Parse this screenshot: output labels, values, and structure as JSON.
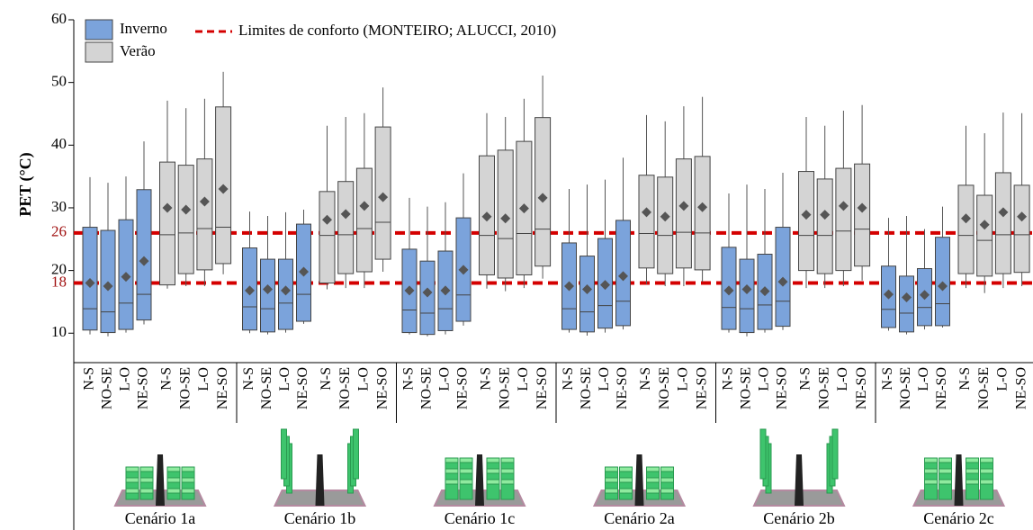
{
  "chart_data": {
    "type": "box",
    "ylabel": "PET (°C)",
    "ylim": [
      5.3,
      60
    ],
    "yticks": [
      10,
      20,
      30,
      40,
      50,
      60
    ],
    "series": [
      {
        "name": "Inverno",
        "color": "#7ba3db"
      },
      {
        "name": "Verão",
        "color": "#d4d4d4"
      }
    ],
    "reference": {
      "name": "Limites de conforto (MONTEIRO; ALUCCI, 2010)",
      "color": "#d40000",
      "values": [
        26,
        18
      ]
    },
    "orientations": [
      "N-S",
      "NO-SE",
      "L-O",
      "NE-SO"
    ],
    "groups": [
      {
        "label": "Cenário 1a",
        "series": [
          {
            "boxes": [
              {
                "lo": 9.8,
                "q1": 10.5,
                "med": 13.9,
                "q3": 26.9,
                "hi": 34.9,
                "mean": 18
              },
              {
                "lo": 9.5,
                "q1": 10.1,
                "med": 13.4,
                "q3": 26.4,
                "hi": 34,
                "mean": 17.5
              },
              {
                "lo": 10.1,
                "q1": 10.6,
                "med": 14.8,
                "q3": 28.1,
                "hi": 35,
                "mean": 19
              },
              {
                "lo": 11.4,
                "q1": 12.1,
                "med": 16.2,
                "q3": 32.9,
                "hi": 40.6,
                "mean": 21.5
              }
            ]
          },
          {
            "boxes": [
              {
                "lo": 17.1,
                "q1": 17.7,
                "med": 25.7,
                "q3": 37.3,
                "hi": 47.1,
                "mean": 30
              },
              {
                "lo": 17.5,
                "q1": 19.5,
                "med": 26,
                "q3": 36.8,
                "hi": 45.9,
                "mean": 29.7
              },
              {
                "lo": 17.5,
                "q1": 20.1,
                "med": 26.7,
                "q3": 37.8,
                "hi": 47.4,
                "mean": 31
              },
              {
                "lo": 19.4,
                "q1": 21.1,
                "med": 26.9,
                "q3": 46.1,
                "hi": 51.7,
                "mean": 33
              }
            ]
          }
        ]
      },
      {
        "label": "Cenário 1b",
        "series": [
          {
            "boxes": [
              {
                "lo": 10,
                "q1": 10.5,
                "med": 14.2,
                "q3": 23.6,
                "hi": 29.4,
                "mean": 16.8
              },
              {
                "lo": 9.8,
                "q1": 10.2,
                "med": 13.9,
                "q3": 21.8,
                "hi": 28.7,
                "mean": 17
              },
              {
                "lo": 10.1,
                "q1": 10.6,
                "med": 14.8,
                "q3": 21.8,
                "hi": 29.3,
                "mean": 16.8
              },
              {
                "lo": 11.5,
                "q1": 11.9,
                "med": 16.2,
                "q3": 27.4,
                "hi": 29.7,
                "mean": 19.8
              }
            ]
          },
          {
            "boxes": [
              {
                "lo": 17,
                "q1": 18,
                "med": 25.6,
                "q3": 32.6,
                "hi": 43.1,
                "mean": 28.1
              },
              {
                "lo": 17.2,
                "q1": 19.5,
                "med": 25.7,
                "q3": 34.2,
                "hi": 44.5,
                "mean": 29
              },
              {
                "lo": 17.2,
                "q1": 19.8,
                "med": 26.7,
                "q3": 36.3,
                "hi": 45.1,
                "mean": 30.3
              },
              {
                "lo": 19.8,
                "q1": 21.8,
                "med": 27.7,
                "q3": 42.9,
                "hi": 49.2,
                "mean": 31.7
              }
            ]
          }
        ]
      },
      {
        "label": "Cenário 1c",
        "series": [
          {
            "boxes": [
              {
                "lo": 9.8,
                "q1": 10.1,
                "med": 13.7,
                "q3": 23.4,
                "hi": 31.6,
                "mean": 16.8
              },
              {
                "lo": 9.5,
                "q1": 9.8,
                "med": 13.2,
                "q3": 21.5,
                "hi": 30.2,
                "mean": 16.5
              },
              {
                "lo": 9.8,
                "q1": 10.4,
                "med": 13.9,
                "q3": 23.1,
                "hi": 30.9,
                "mean": 16.8
              },
              {
                "lo": 11.2,
                "q1": 11.9,
                "med": 16.1,
                "q3": 28.4,
                "hi": 35.5,
                "mean": 20.1
              }
            ]
          },
          {
            "boxes": [
              {
                "lo": 17.1,
                "q1": 19.3,
                "med": 25.6,
                "q3": 38.3,
                "hi": 45.1,
                "mean": 28.6
              },
              {
                "lo": 16.7,
                "q1": 18.8,
                "med": 25.1,
                "q3": 39.2,
                "hi": 44.5,
                "mean": 28.3
              },
              {
                "lo": 17.2,
                "q1": 19.3,
                "med": 25.9,
                "q3": 40.6,
                "hi": 47.4,
                "mean": 29.9
              },
              {
                "lo": 18.7,
                "q1": 20.7,
                "med": 26.6,
                "q3": 44.4,
                "hi": 51.1,
                "mean": 31.6
              }
            ]
          }
        ]
      },
      {
        "label": "Cenário 2a",
        "series": [
          {
            "boxes": [
              {
                "lo": 10.1,
                "q1": 10.6,
                "med": 13.9,
                "q3": 24.4,
                "hi": 33,
                "mean": 17.5
              },
              {
                "lo": 9.6,
                "q1": 10.2,
                "med": 13.4,
                "q3": 22.3,
                "hi": 33.7,
                "mean": 17
              },
              {
                "lo": 10.1,
                "q1": 10.8,
                "med": 14.4,
                "q3": 25.1,
                "hi": 34.5,
                "mean": 17.7
              },
              {
                "lo": 10.6,
                "q1": 11.2,
                "med": 15.1,
                "q3": 28,
                "hi": 38,
                "mean": 19.1
              }
            ]
          },
          {
            "boxes": [
              {
                "lo": 17.8,
                "q1": 20.4,
                "med": 25.9,
                "q3": 35.2,
                "hi": 44.8,
                "mean": 29.3
              },
              {
                "lo": 17.5,
                "q1": 19.5,
                "med": 25.6,
                "q3": 34.9,
                "hi": 43.8,
                "mean": 28.6
              },
              {
                "lo": 17.5,
                "q1": 20.4,
                "med": 26.1,
                "q3": 37.8,
                "hi": 46.2,
                "mean": 30.3
              },
              {
                "lo": 18.2,
                "q1": 20.1,
                "med": 26,
                "q3": 38.2,
                "hi": 47.7,
                "mean": 30.1
              }
            ]
          }
        ]
      },
      {
        "label": "Cenário 2b",
        "series": [
          {
            "boxes": [
              {
                "lo": 10.1,
                "q1": 10.6,
                "med": 14.1,
                "q3": 23.7,
                "hi": 32.3,
                "mean": 16.8
              },
              {
                "lo": 9.5,
                "q1": 10.1,
                "med": 13.9,
                "q3": 21.8,
                "hi": 33.7,
                "mean": 17
              },
              {
                "lo": 10.1,
                "q1": 10.6,
                "med": 14.5,
                "q3": 22.6,
                "hi": 33,
                "mean": 16.7
              },
              {
                "lo": 10.5,
                "q1": 11.1,
                "med": 15.1,
                "q3": 26.9,
                "hi": 35.6,
                "mean": 18.2
              }
            ]
          },
          {
            "boxes": [
              {
                "lo": 17.2,
                "q1": 20,
                "med": 25.6,
                "q3": 35.8,
                "hi": 44.5,
                "mean": 28.9
              },
              {
                "lo": 17.2,
                "q1": 19.5,
                "med": 25.6,
                "q3": 34.6,
                "hi": 43.1,
                "mean": 28.9
              },
              {
                "lo": 17.5,
                "q1": 20,
                "med": 26.3,
                "q3": 36.3,
                "hi": 45.5,
                "mean": 30.3
              },
              {
                "lo": 18.4,
                "q1": 20.7,
                "med": 26.6,
                "q3": 37,
                "hi": 46.4,
                "mean": 30
              }
            ]
          }
        ]
      },
      {
        "label": "Cenário 2c",
        "series": [
          {
            "boxes": [
              {
                "lo": 10.4,
                "q1": 10.9,
                "med": 13.8,
                "q3": 20.7,
                "hi": 28.4,
                "mean": 16.2
              },
              {
                "lo": 9.8,
                "q1": 10.2,
                "med": 13.2,
                "q3": 19.1,
                "hi": 28.7,
                "mean": 15.7
              },
              {
                "lo": 10.6,
                "q1": 11.2,
                "med": 14.1,
                "q3": 20.3,
                "hi": 26.6,
                "mean": 16.1
              },
              {
                "lo": 10.9,
                "q1": 11.2,
                "med": 14.7,
                "q3": 25.3,
                "hi": 30.2,
                "mean": 17.5
              }
            ]
          },
          {
            "boxes": [
              {
                "lo": 17.2,
                "q1": 19.5,
                "med": 25.6,
                "q3": 33.6,
                "hi": 43.1,
                "mean": 28.3
              },
              {
                "lo": 16.4,
                "q1": 19.1,
                "med": 24.8,
                "q3": 32,
                "hi": 41.9,
                "mean": 27.3
              },
              {
                "lo": 17.2,
                "q1": 19.5,
                "med": 25.7,
                "q3": 35.6,
                "hi": 45.2,
                "mean": 29.3
              },
              {
                "lo": 17.5,
                "q1": 19.7,
                "med": 25.7,
                "q3": 33.6,
                "hi": 45.1,
                "mean": 28.6
              }
            ]
          }
        ]
      }
    ]
  }
}
